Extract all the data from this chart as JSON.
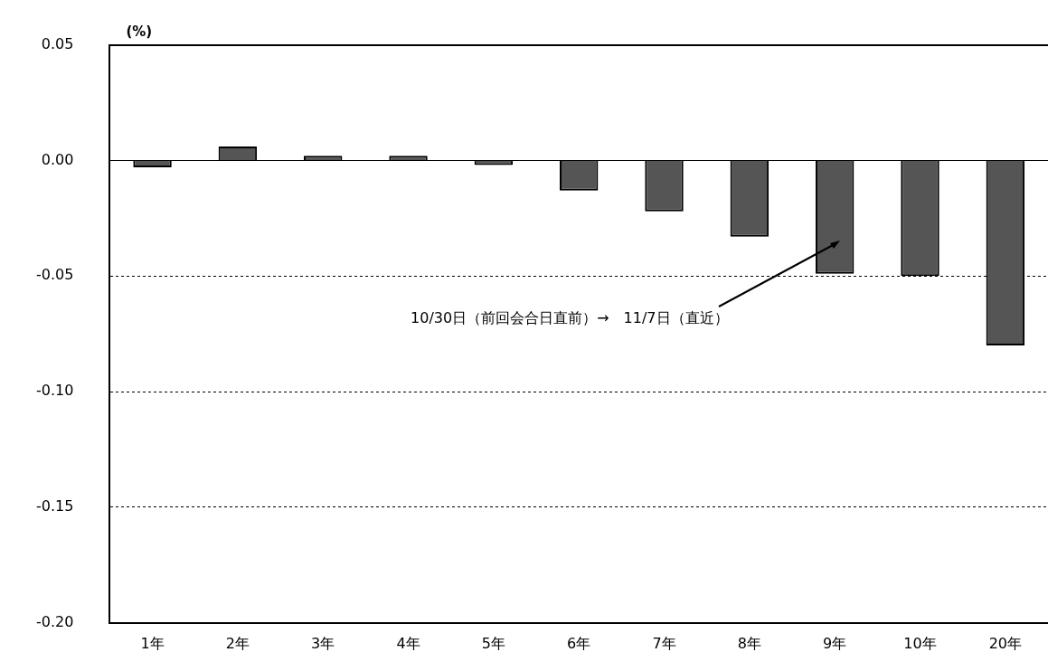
{
  "chart_data": {
    "type": "bar",
    "ylabel": "(%)",
    "categories": [
      "1年",
      "2年",
      "3年",
      "4年",
      "5年",
      "6年",
      "7年",
      "8年",
      "9年",
      "10年",
      "20年"
    ],
    "values": [
      -0.003,
      0.006,
      0.002,
      0.002,
      -0.002,
      -0.013,
      -0.022,
      -0.033,
      -0.049,
      -0.05,
      -0.08
    ],
    "color": "#555555",
    "ylim": [
      -0.2,
      0.05
    ],
    "yticks": [
      {
        "value": -0.2,
        "label": "-0.20"
      },
      -0.15,
      {
        "value": -0.1,
        "label": "-0.10"
      },
      -0.05,
      {
        "value": 0,
        "label": "0.00"
      },
      0.05
    ],
    "grid": "y",
    "legend": false,
    "annotations": [
      "10/30日（前回会合日直前）→　11/7日（直近）"
    ]
  }
}
